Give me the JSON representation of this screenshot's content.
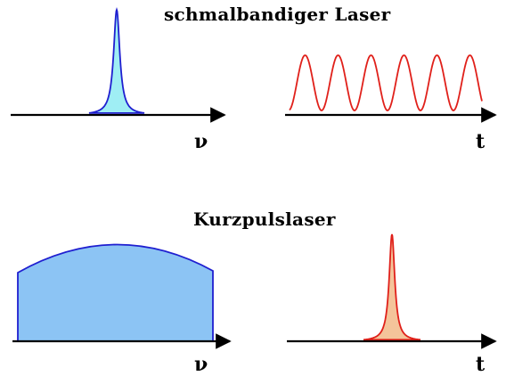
{
  "top": {
    "title": "schmalbandiger Laser",
    "freq_axis_label": "ν",
    "time_axis_label": "t"
  },
  "bottom": {
    "title": "Kurzpulslaser",
    "freq_axis_label": "ν",
    "time_axis_label": "t"
  },
  "colors": {
    "axis": "#000000",
    "spectrum_line": "#1f1fd0",
    "spectrum_fill_narrow": "#9feef4",
    "spectrum_fill_broad": "#8cc4f4",
    "time_line": "#e0201a",
    "pulse_fill": "#f4c49a"
  }
}
